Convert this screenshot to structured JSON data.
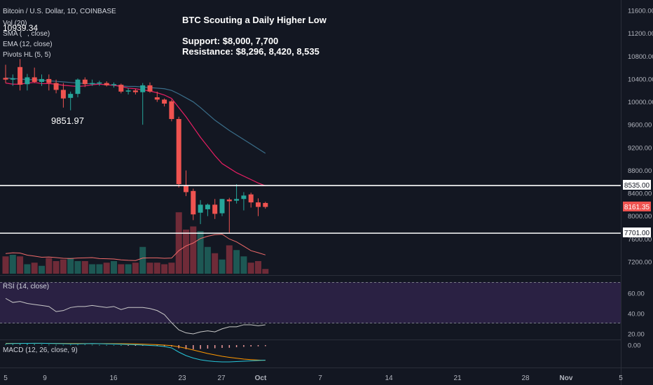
{
  "header": {
    "symbol": "Bitcoin / U.S. Dollar, 1D, COINBASE",
    "indicator_1": "Vol (20)",
    "indicator_2_a": "SMA (",
    "indicator_2_b": ", close)",
    "indicator_3": "EMA (12, close)",
    "indicator_4": "Pivots HL (5, 5)",
    "overlap_value": "10939.34"
  },
  "annotation": {
    "title": "BTC Scouting a Daily Higher Low",
    "support": "Support: $8,000, 7,700",
    "resistance": "Resistance: $8,296, 8,420, 8,535"
  },
  "pivot_low_label": "9851.97",
  "price_badges": {
    "resistance": "8535.00",
    "last": "8161.35",
    "support": "7701.00"
  },
  "rsi_label": "RSI (14, close)",
  "macd_label": "MACD (12, 26, close, 9)",
  "colors": {
    "background": "#131722",
    "up": "#26a69a",
    "down": "#ef5350",
    "axis_text": "#b2b5be",
    "ema_line": "#e91e63",
    "sma_line": "#3a6e8a",
    "rsi_band": "#2a2143",
    "rsi_line": "#c9c9c9"
  },
  "chart_data": {
    "type": "candlestick",
    "x_tick_labels": [
      "5",
      "9",
      "16",
      "23",
      "27",
      "Oct",
      "7",
      "14",
      "21",
      "28",
      "Nov",
      "5"
    ],
    "price_axis_ticks": [
      "11600.00",
      "11200.00",
      "10800.00",
      "10400.00",
      "10000.00",
      "9600.00",
      "9200.00",
      "8800.00",
      "8400.00",
      "8000.00",
      "7600.00",
      "7200.00"
    ],
    "rsi_axis_ticks": [
      "60.00",
      "40.00",
      "20.00"
    ],
    "macd_axis_ticks": [
      "0.00"
    ],
    "candles": [
      {
        "o": 10420,
        "h": 10650,
        "l": 10330,
        "c": 10390
      },
      {
        "o": 10390,
        "h": 10480,
        "l": 10280,
        "c": 10410
      },
      {
        "o": 10610,
        "h": 10750,
        "l": 10200,
        "c": 10300
      },
      {
        "o": 10310,
        "h": 10490,
        "l": 10200,
        "c": 10430
      },
      {
        "o": 10430,
        "h": 10600,
        "l": 10330,
        "c": 10350
      },
      {
        "o": 10350,
        "h": 10480,
        "l": 10280,
        "c": 10400
      },
      {
        "o": 10400,
        "h": 10480,
        "l": 10200,
        "c": 10330
      },
      {
        "o": 10330,
        "h": 10390,
        "l": 10150,
        "c": 10210
      },
      {
        "o": 10210,
        "h": 10330,
        "l": 9900,
        "c": 10060
      },
      {
        "o": 10070,
        "h": 10180,
        "l": 9852,
        "c": 10140
      },
      {
        "o": 10140,
        "h": 10410,
        "l": 10080,
        "c": 10390
      },
      {
        "o": 10390,
        "h": 10430,
        "l": 10260,
        "c": 10310
      },
      {
        "o": 10310,
        "h": 10390,
        "l": 10280,
        "c": 10330
      },
      {
        "o": 10330,
        "h": 10370,
        "l": 10280,
        "c": 10340
      },
      {
        "o": 10330,
        "h": 10360,
        "l": 10270,
        "c": 10290
      },
      {
        "o": 10300,
        "h": 10340,
        "l": 10250,
        "c": 10310
      },
      {
        "o": 10300,
        "h": 10320,
        "l": 10150,
        "c": 10180
      },
      {
        "o": 10180,
        "h": 10240,
        "l": 10130,
        "c": 10200
      },
      {
        "o": 10200,
        "h": 10230,
        "l": 10130,
        "c": 10170
      },
      {
        "o": 10170,
        "h": 10330,
        "l": 9600,
        "c": 10290
      },
      {
        "o": 10290,
        "h": 10340,
        "l": 10160,
        "c": 10180
      },
      {
        "o": 10080,
        "h": 10180,
        "l": 10000,
        "c": 10040
      },
      {
        "o": 10040,
        "h": 10060,
        "l": 9920,
        "c": 9970
      },
      {
        "o": 10010,
        "h": 10040,
        "l": 9660,
        "c": 9700
      },
      {
        "o": 9700,
        "h": 9740,
        "l": 8500,
        "c": 8560
      },
      {
        "o": 8540,
        "h": 8800,
        "l": 8350,
        "c": 8420
      },
      {
        "o": 8440,
        "h": 8480,
        "l": 7930,
        "c": 8030
      },
      {
        "o": 8060,
        "h": 8280,
        "l": 7860,
        "c": 8200
      },
      {
        "o": 8120,
        "h": 8220,
        "l": 8000,
        "c": 8200
      },
      {
        "o": 8200,
        "h": 8300,
        "l": 7950,
        "c": 8040
      },
      {
        "o": 8050,
        "h": 8300,
        "l": 8000,
        "c": 8300
      },
      {
        "o": 8290,
        "h": 8320,
        "l": 7710,
        "c": 8260
      },
      {
        "o": 8270,
        "h": 8560,
        "l": 8220,
        "c": 8300
      },
      {
        "o": 8300,
        "h": 8420,
        "l": 8100,
        "c": 8360
      },
      {
        "o": 8380,
        "h": 8410,
        "l": 8150,
        "c": 8240
      },
      {
        "o": 8240,
        "h": 8310,
        "l": 8000,
        "c": 8161
      },
      {
        "o": 8230,
        "h": 8250,
        "l": 8130,
        "c": 8161
      }
    ],
    "volume_relative": [
      0.55,
      0.6,
      0.55,
      0.3,
      0.35,
      0.25,
      0.5,
      0.4,
      0.45,
      0.5,
      0.4,
      0.4,
      0.3,
      0.3,
      0.35,
      0.4,
      0.3,
      0.3,
      0.35,
      0.85,
      0.35,
      0.35,
      0.3,
      0.35,
      1.95,
      1.4,
      1.5,
      1.35,
      0.85,
      0.65,
      0.45,
      0.9,
      0.75,
      0.55,
      0.35,
      0.4,
      0.15
    ],
    "ema_12": [
      10330,
      10310,
      10310,
      10330,
      10340,
      10320,
      10320,
      10310,
      10290,
      10280,
      10270,
      10280,
      10300,
      10310,
      10300,
      10290,
      10270,
      10240,
      10230,
      10210,
      10190,
      10160,
      10120,
      10060,
      9900,
      9740,
      9560,
      9380,
      9220,
      9060,
      8920,
      8840,
      8760,
      8700,
      8640,
      8580,
      8530
    ],
    "sma_20": [
      10420,
      10410,
      10400,
      10390,
      10390,
      10380,
      10370,
      10360,
      10350,
      10340,
      10330,
      10320,
      10320,
      10310,
      10300,
      10290,
      10280,
      10270,
      10270,
      10260,
      10250,
      10240,
      10230,
      10200,
      10140,
      10070,
      10000,
      9900,
      9790,
      9680,
      9590,
      9500,
      9420,
      9340,
      9260,
      9180,
      9100
    ],
    "resistance_level": 8535,
    "support_level": 7701,
    "last_price": 8161.35,
    "pivot_low": 9851.97,
    "rsi": [
      55,
      51,
      52,
      50,
      49,
      48,
      47,
      42,
      43,
      46,
      47,
      47,
      48,
      47,
      46,
      47,
      44,
      46,
      46,
      46,
      45,
      43,
      39,
      31,
      24,
      21,
      20,
      22,
      23,
      22,
      25,
      27,
      27,
      29,
      29,
      28,
      29
    ],
    "macd_hist": [
      10,
      12,
      15,
      18,
      14,
      10,
      8,
      5,
      4,
      6,
      8,
      10,
      6,
      4,
      3,
      2,
      0,
      -2,
      -4,
      -6,
      -8,
      -10,
      -14,
      -20,
      -45,
      -58,
      -60,
      -55,
      -50,
      -45,
      -40,
      -38,
      -30,
      -25,
      -20,
      -18,
      -15
    ],
    "macd_line": [
      20,
      22,
      24,
      25,
      26,
      26,
      24,
      22,
      20,
      18,
      18,
      20,
      22,
      20,
      18,
      15,
      12,
      9,
      5,
      0,
      -5,
      -10,
      -20,
      -40,
      -100,
      -150,
      -185,
      -210,
      -225,
      -235,
      -240,
      -240,
      -235,
      -230,
      -225,
      -220,
      -215
    ],
    "signal_line": [
      25,
      25,
      25,
      25,
      25,
      25,
      25,
      24,
      24,
      23,
      22,
      22,
      21,
      21,
      21,
      20,
      20,
      19,
      17,
      14,
      10,
      6,
      0,
      -8,
      -25,
      -45,
      -70,
      -95,
      -120,
      -140,
      -160,
      -175,
      -188,
      -200,
      -208,
      -214,
      -218
    ]
  }
}
